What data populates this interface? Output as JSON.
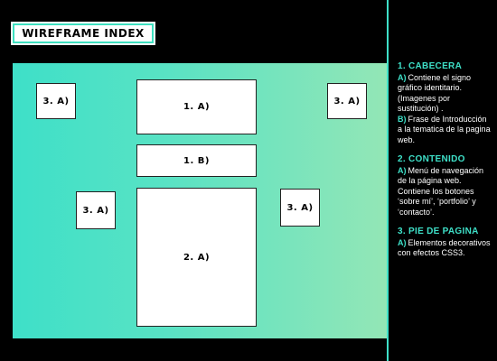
{
  "title": "WIREFRAME INDEX",
  "boxes": {
    "header_a": "1. A)",
    "header_b": "1. B)",
    "content_a": "2. A)",
    "footer_top_left": "3. A)",
    "footer_top_right": "3. A)",
    "footer_mid_left": "3. A)",
    "footer_mid_right": "3. A)"
  },
  "legend": {
    "sections": [
      {
        "heading": "1. CABECERA",
        "items": [
          {
            "key": "A)",
            "text": "Contiene el signo gráfico identitario. (Imagenes por sustitución) ."
          },
          {
            "key": "B)",
            "text": "Frase de Introducción a la tematica de la pagina web."
          }
        ]
      },
      {
        "heading": "2. CONTENIDO",
        "items": [
          {
            "key": "A)",
            "text": "Menú de navegación de la página web. Contiene los botones ‘sobre mí’, ‘portfolio’ y ‘contacto’."
          }
        ]
      },
      {
        "heading": "3. PIE DE PAGINA",
        "items": [
          {
            "key": "A)",
            "text": "Elementos decorativos con efectos CSS3."
          }
        ]
      }
    ]
  },
  "colors": {
    "accent": "#3ee0c8",
    "background": "#000000",
    "box": "#ffffff"
  }
}
